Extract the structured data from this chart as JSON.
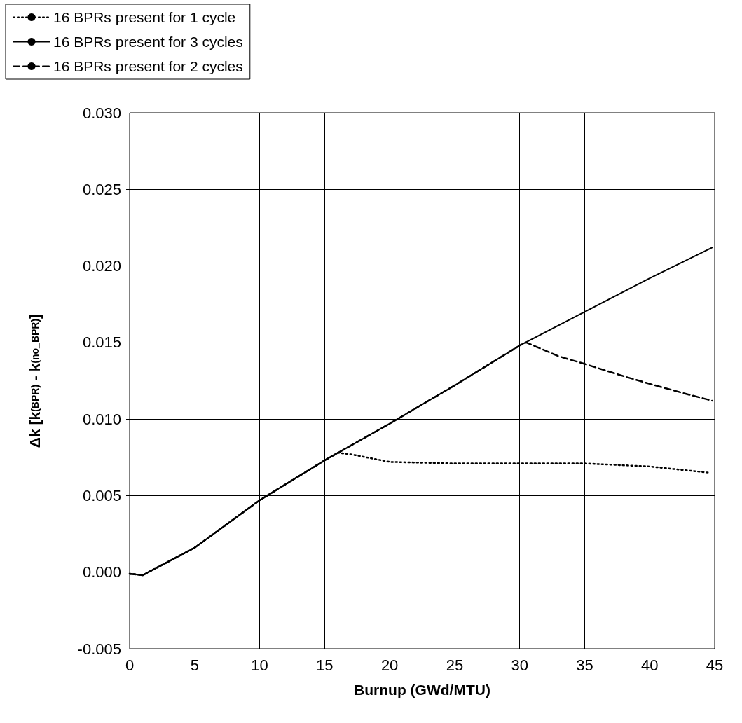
{
  "chart_data": {
    "type": "line",
    "xlabel": "Burnup (GWd/MTU)",
    "ylabel": "Δk [k$_{(BPR)}$ - k$_{(no_BPR)}$]",
    "xlim": [
      0,
      45
    ],
    "xticks": [
      0,
      5,
      10,
      15,
      20,
      25,
      30,
      35,
      40,
      45
    ],
    "ylim": [
      -0.005,
      0.03
    ],
    "yticks": [
      {
        "value": -0.005,
        "label": "-0.005"
      },
      {
        "value": 0,
        "label": "0.000"
      },
      {
        "value": 0.005,
        "label": "0.005"
      },
      {
        "value": 0.01,
        "label": "0.010"
      },
      {
        "value": 0.015,
        "label": "0.015"
      },
      {
        "value": 0.02,
        "label": "0.020"
      },
      {
        "value": 0.025,
        "label": "0.025"
      },
      {
        "value": 0.03,
        "label": "0.030"
      }
    ],
    "grid": true,
    "legend": "top left",
    "marker": "none",
    "series": [
      {
        "name": "16 BPRs present for 1 cycle",
        "color": "#000000",
        "line_style": "dotted",
        "x": [
          0,
          1,
          5,
          10,
          15,
          16,
          17,
          20,
          25,
          30,
          35,
          40,
          44.5
        ],
        "values": [
          -0.0001,
          -0.0002,
          0.0016,
          0.0047,
          0.0073,
          0.0078,
          0.0077,
          0.0072,
          0.0071,
          0.0071,
          0.0071,
          0.0069,
          0.0065
        ]
      },
      {
        "name": "16 BPRs present for 3 cycles",
        "color": "#000000",
        "line_style": "solid",
        "x": [
          0,
          1,
          5,
          10,
          15,
          17.5,
          20,
          25,
          30,
          35,
          40,
          44.8
        ],
        "values": [
          -0.0001,
          -0.0002,
          0.0016,
          0.0047,
          0.0073,
          0.0085,
          0.0097,
          0.0122,
          0.0148,
          0.017,
          0.0192,
          0.0212
        ]
      },
      {
        "name": "16 BPRs present for 2 cycles",
        "color": "#000000",
        "line_style": "dashed",
        "x": [
          0,
          1,
          5,
          10,
          15,
          17.5,
          20,
          25,
          30,
          30.5,
          33,
          35,
          38,
          40,
          43,
          44.8
        ],
        "values": [
          -0.0001,
          -0.0002,
          0.0016,
          0.0047,
          0.0073,
          0.0085,
          0.0097,
          0.0122,
          0.0148,
          0.015,
          0.0141,
          0.0136,
          0.0128,
          0.0123,
          0.0116,
          0.0112
        ]
      }
    ]
  }
}
